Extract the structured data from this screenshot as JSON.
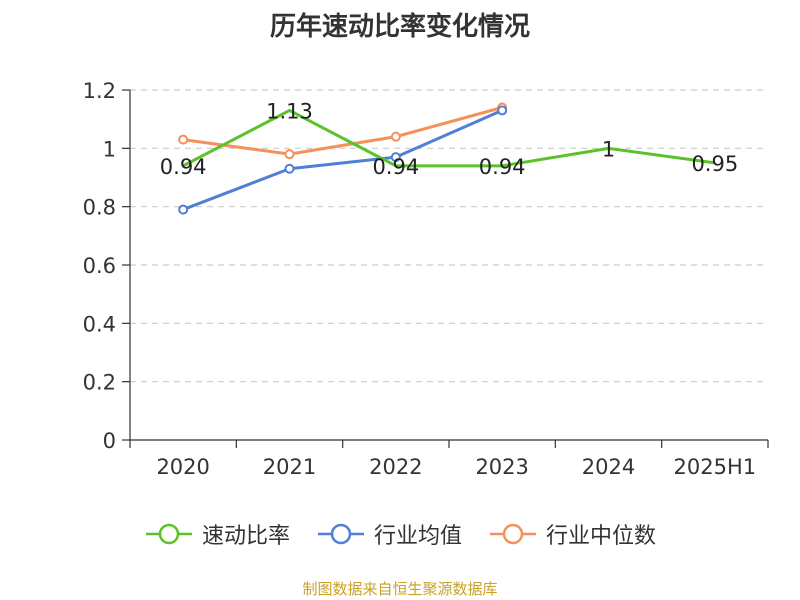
{
  "page": {
    "title": "历年速动比率变化情况",
    "source": "制图数据来自恒生聚源数据库"
  },
  "chart_data": {
    "type": "line",
    "title": "历年速动比率变化情况",
    "categories": [
      "2020",
      "2021",
      "2022",
      "2023",
      "2024",
      "2025H1"
    ],
    "ylim": [
      0,
      1.2
    ],
    "yticks": [
      "0",
      "0.2",
      "0.4",
      "0.6",
      "0.8",
      "1",
      "1.2"
    ],
    "grid": true,
    "legend_position": "bottom",
    "series": [
      {
        "name": "速动比率",
        "color": "#5cc22a",
        "values": [
          0.94,
          1.13,
          0.94,
          0.94,
          1.0,
          0.95
        ],
        "labels": [
          "0.94",
          "1.13",
          "0.94",
          "0.94",
          "1",
          "0.95"
        ],
        "show_labels": true,
        "show_markers": false
      },
      {
        "name": "行业均值",
        "color": "#4f7fd6",
        "values": [
          0.79,
          0.93,
          0.97,
          1.13,
          null,
          null
        ],
        "show_labels": false,
        "show_markers": true
      },
      {
        "name": "行业中位数",
        "color": "#f5905a",
        "values": [
          1.03,
          0.98,
          1.04,
          1.14,
          null,
          null
        ],
        "show_labels": false,
        "show_markers": true
      }
    ]
  }
}
